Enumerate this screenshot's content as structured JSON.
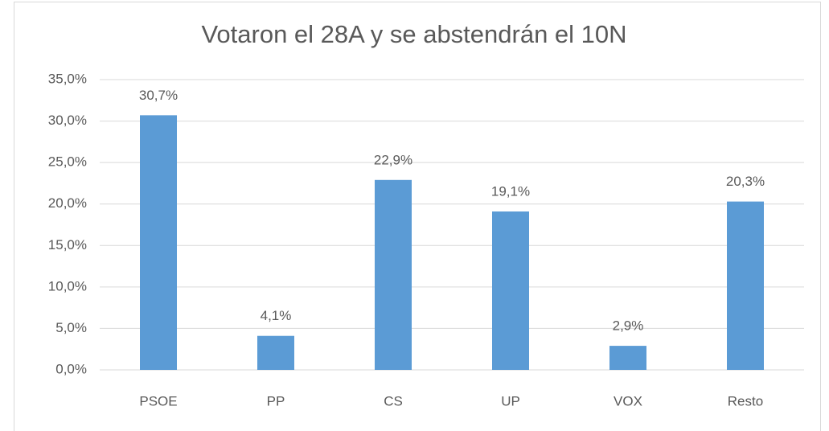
{
  "chart_data": {
    "type": "bar",
    "title": "Votaron el 28A y se abstendrán el 10N",
    "categories": [
      "PSOE",
      "PP",
      "CS",
      "UP",
      "VOX",
      "Resto"
    ],
    "values": [
      30.7,
      4.1,
      22.9,
      19.1,
      2.9,
      20.3
    ],
    "value_labels": [
      "30,7%",
      "4,1%",
      "22,9%",
      "19,1%",
      "2,9%",
      "20,3%"
    ],
    "color": "#5b9bd5",
    "ylim": [
      0,
      35
    ],
    "yticks": [
      {
        "value": 0,
        "label": "0,0%"
      },
      {
        "value": 5,
        "label": "5,0%"
      },
      {
        "value": 10,
        "label": "10,0%"
      },
      {
        "value": 15,
        "label": "15,0%"
      },
      {
        "value": 20,
        "label": "20,0%"
      },
      {
        "value": 25,
        "label": "25,0%"
      },
      {
        "value": 30,
        "label": "30,0%"
      },
      {
        "value": 35,
        "label": "35,0%"
      }
    ],
    "grid": true
  }
}
